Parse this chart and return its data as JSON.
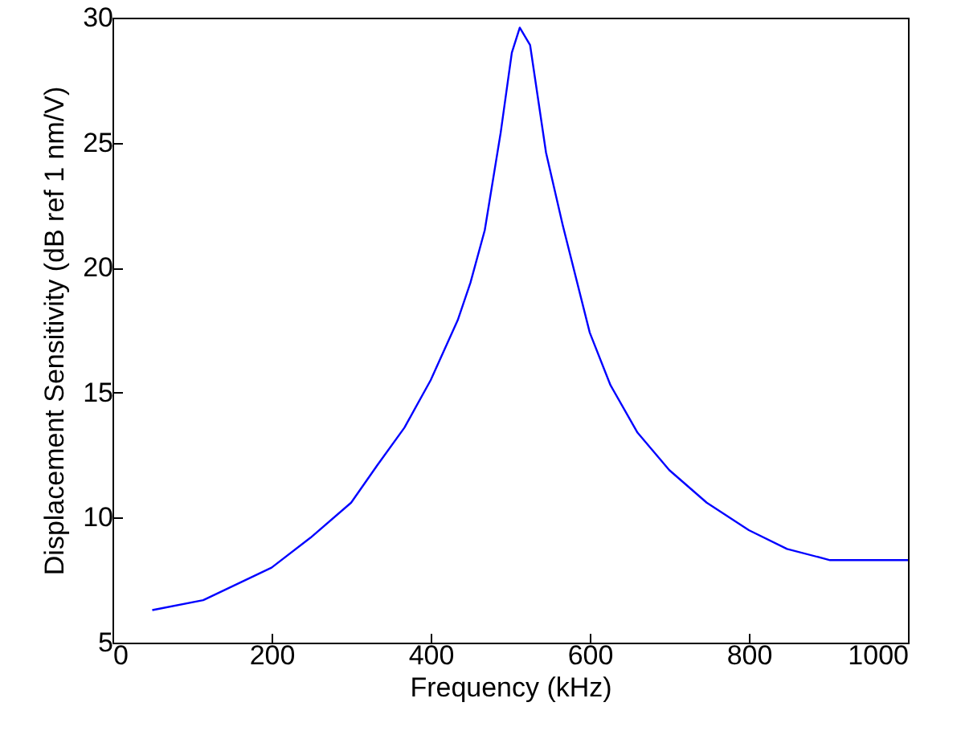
{
  "chart_data": {
    "type": "line",
    "xlabel": "Frequency (kHz)",
    "ylabel": "Displacement Sensitivity (dB ref 1 nm/V)",
    "x": [
      50,
      114,
      200,
      249,
      300,
      333,
      367,
      400,
      434,
      450,
      468,
      488,
      502,
      512,
      525,
      545,
      566,
      600,
      626,
      660,
      700,
      747,
      800,
      848,
      902,
      950,
      1000
    ],
    "series": [
      {
        "color": "#0000ff",
        "values": [
          6.3,
          6.7,
          8.0,
          9.2,
          10.6,
          12.1,
          13.6,
          15.5,
          17.9,
          19.4,
          21.5,
          25.4,
          28.6,
          29.6,
          28.9,
          24.6,
          21.7,
          17.4,
          15.3,
          13.4,
          11.9,
          10.6,
          9.5,
          8.75,
          8.3,
          8.3,
          8.3
        ]
      }
    ],
    "xlim": [
      0,
      1000
    ],
    "xticks": [
      0,
      200,
      400,
      600,
      800,
      1000
    ],
    "ylim": [
      5,
      30
    ],
    "yticks": [
      5,
      10,
      15,
      20,
      25,
      30
    ],
    "grid": false,
    "marker": "none",
    "line_style": "solid"
  }
}
